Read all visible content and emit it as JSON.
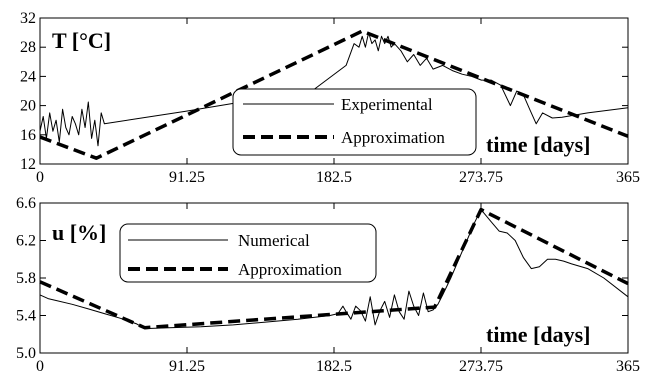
{
  "chart_data": [
    {
      "type": "line",
      "ylabel": "T [°C]",
      "xlabel": "time [days]",
      "xlim": [
        0,
        365
      ],
      "ylim": [
        12,
        32
      ],
      "xticks": [
        "0",
        "91.25",
        "182.5",
        "273.75",
        "365"
      ],
      "yticks": [
        "12",
        "16",
        "20",
        "24",
        "28",
        "32"
      ],
      "legend_position": "center-right",
      "series": [
        {
          "name": "Experimental",
          "style": "solid-thin",
          "x": [
            0,
            2,
            4,
            6,
            8,
            10,
            12,
            14,
            16,
            18,
            20,
            22,
            24,
            26,
            28,
            30,
            32,
            34,
            36,
            38,
            40,
            60,
            90,
            120,
            150,
            170,
            190,
            195,
            198,
            200,
            202,
            204,
            206,
            208,
            210,
            212,
            214,
            216,
            218,
            220,
            224,
            228,
            232,
            236,
            240,
            244,
            250,
            256,
            262,
            268,
            274,
            280,
            286,
            292,
            296,
            300,
            304,
            308,
            312,
            318,
            324,
            340,
            365
          ],
          "y": [
            16.5,
            18.5,
            15.5,
            19.0,
            16.5,
            18.0,
            15.0,
            19.5,
            17.0,
            16.0,
            18.5,
            17.5,
            16.0,
            19.5,
            17.0,
            20.5,
            15.5,
            18.0,
            14.5,
            19.0,
            17.5,
            18.2,
            19.2,
            20.3,
            21.4,
            22.2,
            25.5,
            28.5,
            28.0,
            29.5,
            28.0,
            30.0,
            28.5,
            29.0,
            27.5,
            29.5,
            28.5,
            29.5,
            28.0,
            28.5,
            27.5,
            26.0,
            27.0,
            25.5,
            26.5,
            25.0,
            25.5,
            24.8,
            24.3,
            24.0,
            23.5,
            23.5,
            22.8,
            20.0,
            22.0,
            21.5,
            19.5,
            17.5,
            19.0,
            18.3,
            18.4,
            19.0,
            19.7
          ]
        },
        {
          "name": "Approximation",
          "style": "dashed-thick",
          "x": [
            0,
            35,
            200,
            365
          ],
          "y": [
            15.7,
            12.8,
            30.2,
            15.8
          ]
        }
      ]
    },
    {
      "type": "line",
      "ylabel": "u [%]",
      "xlabel": "time [days]",
      "xlim": [
        0,
        365
      ],
      "ylim": [
        5.0,
        6.6
      ],
      "xticks": [
        "0",
        "91.25",
        "182.5",
        "273.75",
        "365"
      ],
      "yticks": [
        "5.0",
        "5.4",
        "5.8",
        "6.2",
        "6.6"
      ],
      "legend_position": "top-left",
      "series": [
        {
          "name": "Numerical",
          "style": "solid-thin",
          "x": [
            0,
            5,
            10,
            20,
            30,
            40,
            50,
            60,
            65,
            80,
            100,
            120,
            140,
            160,
            180,
            185,
            188,
            190,
            193,
            196,
            199,
            202,
            205,
            208,
            211,
            214,
            217,
            220,
            223,
            226,
            229,
            232,
            235,
            238,
            241,
            244,
            247,
            250,
            255,
            260,
            265,
            270,
            273.75,
            280,
            285,
            290,
            295,
            300,
            305,
            310,
            315,
            320,
            325,
            330,
            340,
            350,
            365
          ],
          "y": [
            5.62,
            5.58,
            5.56,
            5.52,
            5.47,
            5.42,
            5.37,
            5.31,
            5.26,
            5.27,
            5.28,
            5.3,
            5.33,
            5.36,
            5.4,
            5.42,
            5.5,
            5.44,
            5.36,
            5.5,
            5.45,
            5.34,
            5.6,
            5.3,
            5.45,
            5.55,
            5.38,
            5.62,
            5.44,
            5.36,
            5.66,
            5.5,
            5.4,
            5.64,
            5.44,
            5.46,
            5.52,
            5.62,
            5.8,
            6.0,
            6.2,
            6.4,
            6.53,
            6.4,
            6.3,
            6.28,
            6.2,
            6.02,
            5.9,
            5.92,
            6.0,
            6.0,
            5.98,
            5.95,
            5.9,
            5.8,
            5.6
          ]
        },
        {
          "name": "Approximation",
          "style": "dashed-thick",
          "x": [
            0,
            65,
            245,
            273.75,
            365
          ],
          "y": [
            5.76,
            5.27,
            5.49,
            6.53,
            5.74
          ]
        }
      ]
    }
  ]
}
